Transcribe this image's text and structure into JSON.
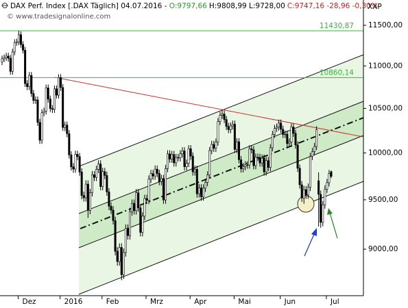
{
  "chart_data": {
    "type": "candlestick",
    "header": [
      {
        "text": "DAX Perf. Index [.DAX  Täglich] 04.07.2016 -",
        "color": "#000000"
      },
      {
        "text": "O:9797,66",
        "color": "#2a9a2a"
      },
      {
        "text": "H:9808,99 L:9728,00",
        "color": "#000000"
      },
      {
        "text": "C:9747,16 -28,96 -0,30%",
        "color": "#d02020"
      }
    ],
    "watermark": "© www.tradesignalonline.com",
    "axis_unit": "XXP",
    "log_scale": true,
    "ylim": [
      8566,
      11823
    ],
    "yticks": [
      {
        "value": 9000,
        "label": "9000,00"
      },
      {
        "value": 9500,
        "label": "9500,00"
      },
      {
        "value": 10000,
        "label": "10000,00"
      },
      {
        "value": 10500,
        "label": "10500,00"
      },
      {
        "value": 11000,
        "label": "11000,00"
      },
      {
        "value": 11500,
        "label": "11500,00"
      }
    ],
    "levels": [
      {
        "value": 11430.87,
        "label": "11430,87"
      },
      {
        "value": 10860.14,
        "label": "10860,14"
      }
    ],
    "level_color": "#3cb043",
    "up_color": "#ffffff",
    "down_color": "#000000",
    "categories": [
      null,
      null,
      null,
      null,
      null,
      null,
      null,
      null,
      null,
      "Dez",
      null,
      null,
      null,
      null,
      null,
      null,
      null,
      null,
      null,
      null,
      null,
      null,
      null,
      null,
      null,
      null,
      null,
      null,
      null,
      "2016",
      null,
      null,
      null,
      null,
      null,
      null,
      null,
      null,
      null,
      null,
      null,
      null,
      null,
      null,
      null,
      null,
      null,
      null,
      null,
      "Feb",
      null,
      null,
      null,
      null,
      null,
      null,
      null,
      null,
      null,
      null,
      null,
      null,
      null,
      null,
      null,
      null,
      null,
      null,
      null,
      null,
      "Mrz",
      null,
      null,
      null,
      null,
      null,
      null,
      null,
      null,
      null,
      null,
      null,
      null,
      null,
      null,
      null,
      null,
      null,
      null,
      null,
      null,
      "Apr",
      null,
      null,
      null,
      null,
      null,
      null,
      null,
      null,
      null,
      null,
      null,
      null,
      null,
      null,
      null,
      null,
      null,
      null,
      null,
      null,
      "Mai",
      null,
      null,
      null,
      null,
      null,
      null,
      null,
      null,
      null,
      null,
      null,
      null,
      null,
      null,
      null,
      null,
      null,
      null,
      null,
      null,
      null,
      "Jun",
      null,
      null,
      null,
      null,
      null,
      null,
      null,
      null,
      null,
      null,
      null,
      null,
      null,
      null,
      null,
      null,
      null,
      null,
      null,
      null,
      null,
      "Jul",
      null
    ],
    "open": [
      11050,
      11085,
      11100,
      11119,
      11092,
      10934,
      11169,
      11285,
      11293,
      11382,
      11261,
      11191,
      10789,
      10752,
      10886,
      10673,
      10592,
      10598,
      10340,
      10140,
      10450,
      10469,
      10738,
      10608,
      10498,
      10488,
      10727,
      10653,
      10860,
      10743,
      10283,
      10310,
      10214,
      9979,
      9849,
      9825,
      9985,
      9960,
      9794,
      9545,
      9521,
      9664,
      9391,
      9574,
      9764,
      9736,
      9822,
      9880,
      9639,
      9798,
      9757,
      9582,
      9434,
      9393,
      9286,
      8979,
      8879,
      9017,
      8752,
      8967,
      9207,
      9135,
      9377,
      9463,
      9388,
      9573,
      9416,
      9167,
      9331,
      9513,
      9495,
      9717,
      9776,
      9751,
      9824,
      9778,
      9692,
      9723,
      9498,
      9831,
      9990,
      9933,
      9983,
      9892,
      9950,
      9948,
      9990,
      10022,
      9851,
      9887,
      10046,
      9966,
      9795,
      9822,
      9563,
      9624,
      9530,
      9622,
      9682,
      9761,
      10026,
      10094,
      10051,
      10120,
      10350,
      10421,
      10435,
      10373,
      10294,
      10259,
      10300,
      10321,
      10039,
      10123,
      9926,
      9828,
      9851,
      9870,
      9869,
      10045,
      10035,
      9862,
      9953,
      9952,
      9891,
      9943,
      9795,
      9916,
      9842,
      10057,
      10205,
      10272,
      10287,
      10333,
      10263,
      10205,
      10208,
      10103,
      10121,
      10288,
      10217,
      10088,
      9834,
      9657,
      9519,
      9606,
      9550,
      9631,
      9962,
      10015,
      10071,
      9700,
      9557,
      9268,
      9448,
      9612,
      9680,
      9797.66
    ],
    "high": [
      11125,
      11140,
      11159,
      11159,
      11132,
      11209,
      11325,
      11333,
      11430.87,
      11422,
      11301,
      11231,
      10829,
      10926,
      10926,
      10713,
      10638,
      10638,
      10380,
      10490,
      10509,
      10778,
      10778,
      10648,
      10538,
      10767,
      10767,
      10900,
      10900,
      10783,
      10350,
      10350,
      10254,
      10019,
      9889,
      10025,
      10025,
      10000,
      9834,
      9585,
      9704,
      9704,
      9614,
      9804,
      9804,
      9862,
      9920,
      9920,
      9838,
      9838,
      9797,
      9622,
      9474,
      9433,
      9326,
      9019,
      9057,
      9057,
      9007,
      9247,
      9247,
      9417,
      9503,
      9503,
      9613,
      9613,
      9456,
      9371,
      9553,
      9553,
      9757,
      9816,
      9816,
      9864,
      9864,
      9818,
      9763,
      9763,
      9871,
      10030,
      10030,
      10023,
      10023,
      9990,
      9990,
      10030,
      10062,
      10062,
      9927,
      10086,
      10086,
      10006,
      9862,
      9862,
      9664,
      9664,
      9662,
      9722,
      9801,
      10066,
      10134,
      10134,
      10160,
      10390,
      10461,
      10486,
      10475,
      10413,
      10334,
      10340,
      10361,
      10361,
      10163,
      10163,
      9966,
      9891,
      9910,
      9910,
      10085,
      10085,
      10075,
      9993,
      9993,
      9992,
      9983,
      9983,
      9956,
      9956,
      10097,
      10245,
      10312,
      10327,
      10373,
      10373,
      10303,
      10248,
      10248,
      10161,
      10328,
      10328,
      10257,
      10128,
      9874,
      9697,
      9646,
      9646,
      9671,
      10002,
      10055,
      10111,
      10297,
      9790,
      9597,
      9488,
      9652,
      9720,
      9816,
      9808.99
    ],
    "low": [
      11010,
      11045,
      11060,
      11052,
      10894,
      10894,
      11129,
      11245,
      11253,
      11221,
      11151,
      10749,
      10712,
      10712,
      10633,
      10552,
      10552,
      10300,
      10100,
      10100,
      10410,
      10429,
      10568,
      10458,
      10448,
      10448,
      10613,
      10613,
      10703,
      10243,
      10243,
      10174,
      9939,
      9809,
      9785,
      9785,
      9920,
      9754,
      9505,
      9481,
      9481,
      9314,
      9351,
      9534,
      9696,
      9696,
      9782,
      9599,
      9599,
      9717,
      9542,
      9394,
      9353,
      9246,
      8939,
      8839,
      8839,
      8699,
      8712,
      8927,
      9095,
      9095,
      9337,
      9348,
      9348,
      9376,
      9127,
      9127,
      9291,
      9455,
      9455,
      9677,
      9711,
      9711,
      9738,
      9652,
      9652,
      9458,
      9458,
      9791,
      9893,
      9893,
      9852,
      9852,
      9908,
      9908,
      9950,
      9811,
      9811,
      9847,
      9926,
      9755,
      9755,
      9523,
      9523,
      9490,
      9490,
      9582,
      9642,
      9721,
      9986,
      10011,
      10011,
      10080,
      10310,
      10381,
      10333,
      10254,
      10219,
      10219,
      10260,
      9999,
      9999,
      9886,
      9788,
      9788,
      9811,
      9829,
      9829,
      9995,
      9822,
      9822,
      9912,
      9851,
      9851,
      9755,
      9755,
      9802,
      9802,
      10017,
      10165,
      10232,
      10247,
      10223,
      10165,
      10165,
      10063,
      10063,
      10081,
      10177,
      10048,
      9794,
      9617,
      9479,
      9459,
      9510,
      9510,
      9591,
      9922,
      9975,
      10031,
      9226,
      9214,
      9228,
      9408,
      9572,
      9640,
      9728
    ],
    "close": [
      11085,
      11100,
      11119,
      11092,
      10934,
      11169,
      11285,
      11293,
      11382,
      11261,
      11191,
      10789,
      10752,
      10886,
      10673,
      10592,
      10598,
      10340,
      10140,
      10450,
      10469,
      10738,
      10608,
      10498,
      10488,
      10727,
      10653,
      10860,
      10743,
      10283,
      10310,
      10214,
      9979,
      9849,
      9825,
      9985,
      9960,
      9794,
      9545,
      9521,
      9664,
      9391,
      9574,
      9764,
      9736,
      9822,
      9880,
      9639,
      9798,
      9757,
      9582,
      9434,
      9393,
      9286,
      8979,
      8879,
      9017,
      8752,
      8967,
      9207,
      9135,
      9377,
      9463,
      9388,
      9573,
      9416,
      9167,
      9331,
      9513,
      9495,
      9717,
      9776,
      9751,
      9824,
      9778,
      9692,
      9723,
      9498,
      9831,
      9990,
      9933,
      9983,
      9892,
      9950,
      9948,
      9990,
      10022,
      9851,
      9887,
      10046,
      9966,
      9795,
      9822,
      9563,
      9624,
      9530,
      9622,
      9682,
      9761,
      10026,
      10094,
      10051,
      10120,
      10350,
      10421,
      10435,
      10373,
      10294,
      10259,
      10300,
      10321,
      10039,
      10123,
      9926,
      9828,
      9851,
      9870,
      9869,
      10045,
      10035,
      9862,
      9953,
      9952,
      9891,
      9943,
      9795,
      9916,
      9842,
      10057,
      10205,
      10272,
      10287,
      10333,
      10263,
      10205,
      10208,
      10103,
      10121,
      10288,
      10217,
      10088,
      9834,
      9657,
      9519,
      9606,
      9550,
      9631,
      9962,
      10015,
      10071,
      10257,
      9557,
      9268,
      9448,
      9612,
      9680,
      9776,
      9747.16
    ]
  }
}
